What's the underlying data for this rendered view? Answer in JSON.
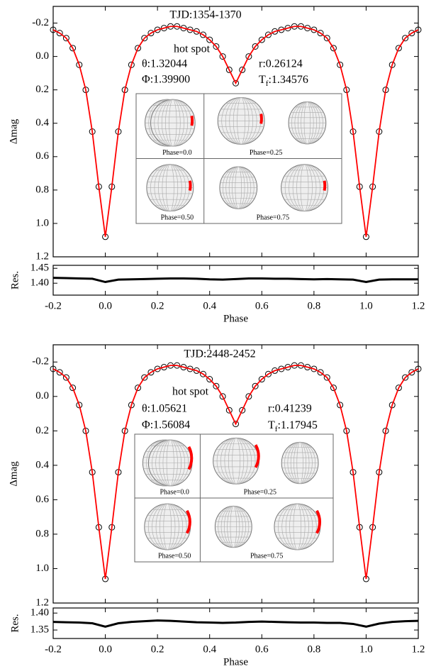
{
  "chart_data": [
    {
      "type": "scatter",
      "title": "TJD:1354-1370",
      "ylabel": "Δmag",
      "invert_y": true,
      "x": [
        -0.2,
        -0.175,
        -0.15,
        -0.125,
        -0.1,
        -0.075,
        -0.05,
        -0.025,
        0,
        0.025,
        0.05,
        0.075,
        0.1,
        0.125,
        0.15,
        0.175,
        0.2,
        0.225,
        0.25,
        0.275,
        0.3,
        0.325,
        0.35,
        0.375,
        0.4,
        0.425,
        0.45,
        0.475,
        0.5,
        0.525,
        0.55,
        0.575,
        0.6,
        0.625,
        0.65,
        0.675,
        0.7,
        0.725,
        0.75,
        0.775,
        0.8,
        0.825,
        0.85,
        0.875,
        0.9,
        0.925,
        0.95,
        0.975,
        1,
        1.025,
        1.05,
        1.075,
        1.1,
        1.125,
        1.15,
        1.175,
        1.2
      ],
      "series": [
        {
          "color": "#000000",
          "marker": "open-circle",
          "values": [
            -0.16,
            -0.14,
            -0.11,
            -0.05,
            0.05,
            0.2,
            0.45,
            0.78,
            1.08,
            0.78,
            0.45,
            0.2,
            0.05,
            -0.05,
            -0.11,
            -0.14,
            -0.16,
            -0.17,
            -0.18,
            -0.18,
            -0.17,
            -0.16,
            -0.15,
            -0.13,
            -0.1,
            -0.06,
            0,
            0.08,
            0.16,
            0.08,
            0,
            -0.06,
            -0.1,
            -0.13,
            -0.15,
            -0.16,
            -0.17,
            -0.18,
            -0.18,
            -0.17,
            -0.16,
            -0.14,
            -0.11,
            -0.05,
            0.05,
            0.2,
            0.45,
            0.78,
            1.08,
            0.78,
            0.45,
            0.2,
            0.05,
            -0.05,
            -0.11,
            -0.14,
            -0.16
          ]
        },
        {
          "color": "#ff0000",
          "marker": "line",
          "values": [
            -0.16,
            -0.14,
            -0.11,
            -0.05,
            0.05,
            0.2,
            0.45,
            0.78,
            1.08,
            0.78,
            0.45,
            0.2,
            0.05,
            -0.05,
            -0.11,
            -0.14,
            -0.16,
            -0.17,
            -0.18,
            -0.18,
            -0.17,
            -0.16,
            -0.15,
            -0.13,
            -0.1,
            -0.06,
            0,
            0.08,
            0.16,
            0.08,
            0,
            -0.06,
            -0.1,
            -0.13,
            -0.15,
            -0.16,
            -0.17,
            -0.18,
            -0.18,
            -0.17,
            -0.16,
            -0.14,
            -0.11,
            -0.05,
            0.05,
            0.2,
            0.45,
            0.78,
            1.08,
            0.78,
            0.45,
            0.2,
            0.05,
            -0.05,
            -0.11,
            -0.14,
            -0.16
          ]
        }
      ],
      "xlim": [
        -0.2,
        1.2
      ],
      "ylim": [
        -0.3,
        1.2
      ],
      "xticks": [
        -0.2,
        0,
        0.2,
        0.4,
        0.6,
        0.8,
        1,
        1.2
      ],
      "yticks": [
        -0.2,
        {
          "value": 0,
          "label": "0.0"
        },
        0.2,
        0.4,
        0.6,
        0.8,
        {
          "value": 1,
          "label": "1.0"
        },
        1.2
      ],
      "annotations": {
        "spot": "hot spot",
        "theta": "θ:1.32044",
        "phi": "Φ:1.39900",
        "r": "r:0.26124",
        "tf_symbol": "T",
        "tf_subscript": "f",
        "tf_value": ":1.34576"
      },
      "inset_labels": [
        "Phase=0.0",
        "Phase=0.25",
        "Phase=0.50",
        "Phase=0.75"
      ]
    },
    {
      "type": "line",
      "ylabel": "Res.",
      "xlabel": "Phase",
      "color": "#000000",
      "x": [
        -0.2,
        -0.15,
        -0.1,
        -0.05,
        0,
        0.05,
        0.1,
        0.15,
        0.2,
        0.25,
        0.3,
        0.35,
        0.4,
        0.45,
        0.5,
        0.55,
        0.6,
        0.65,
        0.7,
        0.75,
        0.8,
        0.85,
        0.9,
        0.95,
        1,
        1.05,
        1.1,
        1.15,
        1.2
      ],
      "values": [
        1.418,
        1.417,
        1.416,
        1.415,
        1.404,
        1.412,
        1.413,
        1.414,
        1.415,
        1.416,
        1.416,
        1.415,
        1.413,
        1.412,
        1.414,
        1.416,
        1.416,
        1.415,
        1.415,
        1.414,
        1.413,
        1.414,
        1.413,
        1.412,
        1.404,
        1.412,
        1.413,
        1.413,
        1.413
      ],
      "xlim": [
        -0.2,
        1.2
      ],
      "ylim": [
        1.36,
        1.46
      ],
      "xticks": [
        -0.2,
        {
          "value": 0,
          "label": "0.0"
        },
        0.2,
        0.4,
        0.6,
        0.8,
        {
          "value": 1,
          "label": "1.0"
        },
        1.2
      ],
      "yticks": [
        {
          "value": 1.4,
          "label": "1.40"
        },
        1.45
      ]
    },
    {
      "type": "scatter",
      "title": "TJD:2448-2452",
      "ylabel": "Δmag",
      "invert_y": true,
      "x": [
        -0.2,
        -0.175,
        -0.15,
        -0.125,
        -0.1,
        -0.075,
        -0.05,
        -0.025,
        0,
        0.025,
        0.05,
        0.075,
        0.1,
        0.125,
        0.15,
        0.175,
        0.2,
        0.225,
        0.25,
        0.275,
        0.3,
        0.325,
        0.35,
        0.375,
        0.4,
        0.425,
        0.45,
        0.475,
        0.5,
        0.525,
        0.55,
        0.575,
        0.6,
        0.625,
        0.65,
        0.675,
        0.7,
        0.725,
        0.75,
        0.775,
        0.8,
        0.825,
        0.85,
        0.875,
        0.9,
        0.925,
        0.95,
        0.975,
        1,
        1.025,
        1.05,
        1.075,
        1.1,
        1.125,
        1.15,
        1.175,
        1.2
      ],
      "series": [
        {
          "color": "#000000",
          "marker": "open-circle",
          "values": [
            -0.16,
            -0.14,
            -0.11,
            -0.05,
            0.05,
            0.2,
            0.44,
            0.76,
            1.06,
            0.76,
            0.44,
            0.2,
            0.05,
            -0.05,
            -0.11,
            -0.14,
            -0.16,
            -0.17,
            -0.18,
            -0.18,
            -0.17,
            -0.16,
            -0.15,
            -0.13,
            -0.1,
            -0.06,
            0,
            0.08,
            0.16,
            0.08,
            0,
            -0.06,
            -0.1,
            -0.13,
            -0.15,
            -0.16,
            -0.17,
            -0.18,
            -0.18,
            -0.17,
            -0.16,
            -0.14,
            -0.11,
            -0.05,
            0.05,
            0.2,
            0.44,
            0.76,
            1.06,
            0.76,
            0.44,
            0.2,
            0.05,
            -0.05,
            -0.11,
            -0.14,
            -0.16
          ]
        },
        {
          "color": "#ff0000",
          "marker": "line",
          "values": [
            -0.16,
            -0.14,
            -0.11,
            -0.05,
            0.05,
            0.2,
            0.44,
            0.76,
            1.06,
            0.76,
            0.44,
            0.2,
            0.05,
            -0.05,
            -0.11,
            -0.14,
            -0.16,
            -0.17,
            -0.18,
            -0.18,
            -0.17,
            -0.16,
            -0.15,
            -0.13,
            -0.1,
            -0.06,
            0,
            0.08,
            0.16,
            0.08,
            0,
            -0.06,
            -0.1,
            -0.13,
            -0.15,
            -0.16,
            -0.17,
            -0.18,
            -0.18,
            -0.17,
            -0.16,
            -0.14,
            -0.11,
            -0.05,
            0.05,
            0.2,
            0.44,
            0.76,
            1.06,
            0.76,
            0.44,
            0.2,
            0.05,
            -0.05,
            -0.11,
            -0.14,
            -0.16
          ]
        }
      ],
      "xlim": [
        -0.2,
        1.2
      ],
      "ylim": [
        -0.3,
        1.2
      ],
      "xticks": [
        -0.2,
        0,
        0.2,
        0.4,
        0.6,
        0.8,
        1,
        1.2
      ],
      "yticks": [
        -0.2,
        {
          "value": 0,
          "label": "0.0"
        },
        0.2,
        0.4,
        0.6,
        0.8,
        {
          "value": 1,
          "label": "1.0"
        },
        1.2
      ],
      "annotations": {
        "spot": "hot spot",
        "theta": "θ:1.05621",
        "phi": "Φ:1.56084",
        "r": "r:0.41239",
        "tf_symbol": "T",
        "tf_subscript": "f",
        "tf_value": ":1.17945"
      },
      "inset_labels": [
        "Phase=0.0",
        "Phase=0.25",
        "Phase=0.50",
        "Phase=0.75"
      ]
    },
    {
      "type": "line",
      "ylabel": "Res.",
      "xlabel": "Phase",
      "color": "#000000",
      "x": [
        -0.2,
        -0.15,
        -0.1,
        -0.05,
        0,
        0.05,
        0.1,
        0.15,
        0.2,
        0.25,
        0.3,
        0.35,
        0.4,
        0.45,
        0.5,
        0.55,
        0.6,
        0.65,
        0.7,
        0.75,
        0.8,
        0.85,
        0.9,
        0.95,
        1,
        1.05,
        1.1,
        1.15,
        1.2
      ],
      "values": [
        1.374,
        1.373,
        1.372,
        1.37,
        1.36,
        1.37,
        1.374,
        1.376,
        1.378,
        1.377,
        1.375,
        1.373,
        1.372,
        1.371,
        1.372,
        1.374,
        1.375,
        1.374,
        1.373,
        1.372,
        1.372,
        1.371,
        1.371,
        1.368,
        1.36,
        1.369,
        1.374,
        1.376,
        1.377
      ],
      "xlim": [
        -0.2,
        1.2
      ],
      "ylim": [
        1.325,
        1.415
      ],
      "xticks": [
        -0.2,
        {
          "value": 0,
          "label": "0.0"
        },
        0.2,
        0.4,
        0.6,
        0.8,
        {
          "value": 1,
          "label": "1.0"
        },
        1.2
      ],
      "yticks": [
        1.35,
        {
          "value": 1.4,
          "label": "1.40"
        }
      ]
    }
  ]
}
